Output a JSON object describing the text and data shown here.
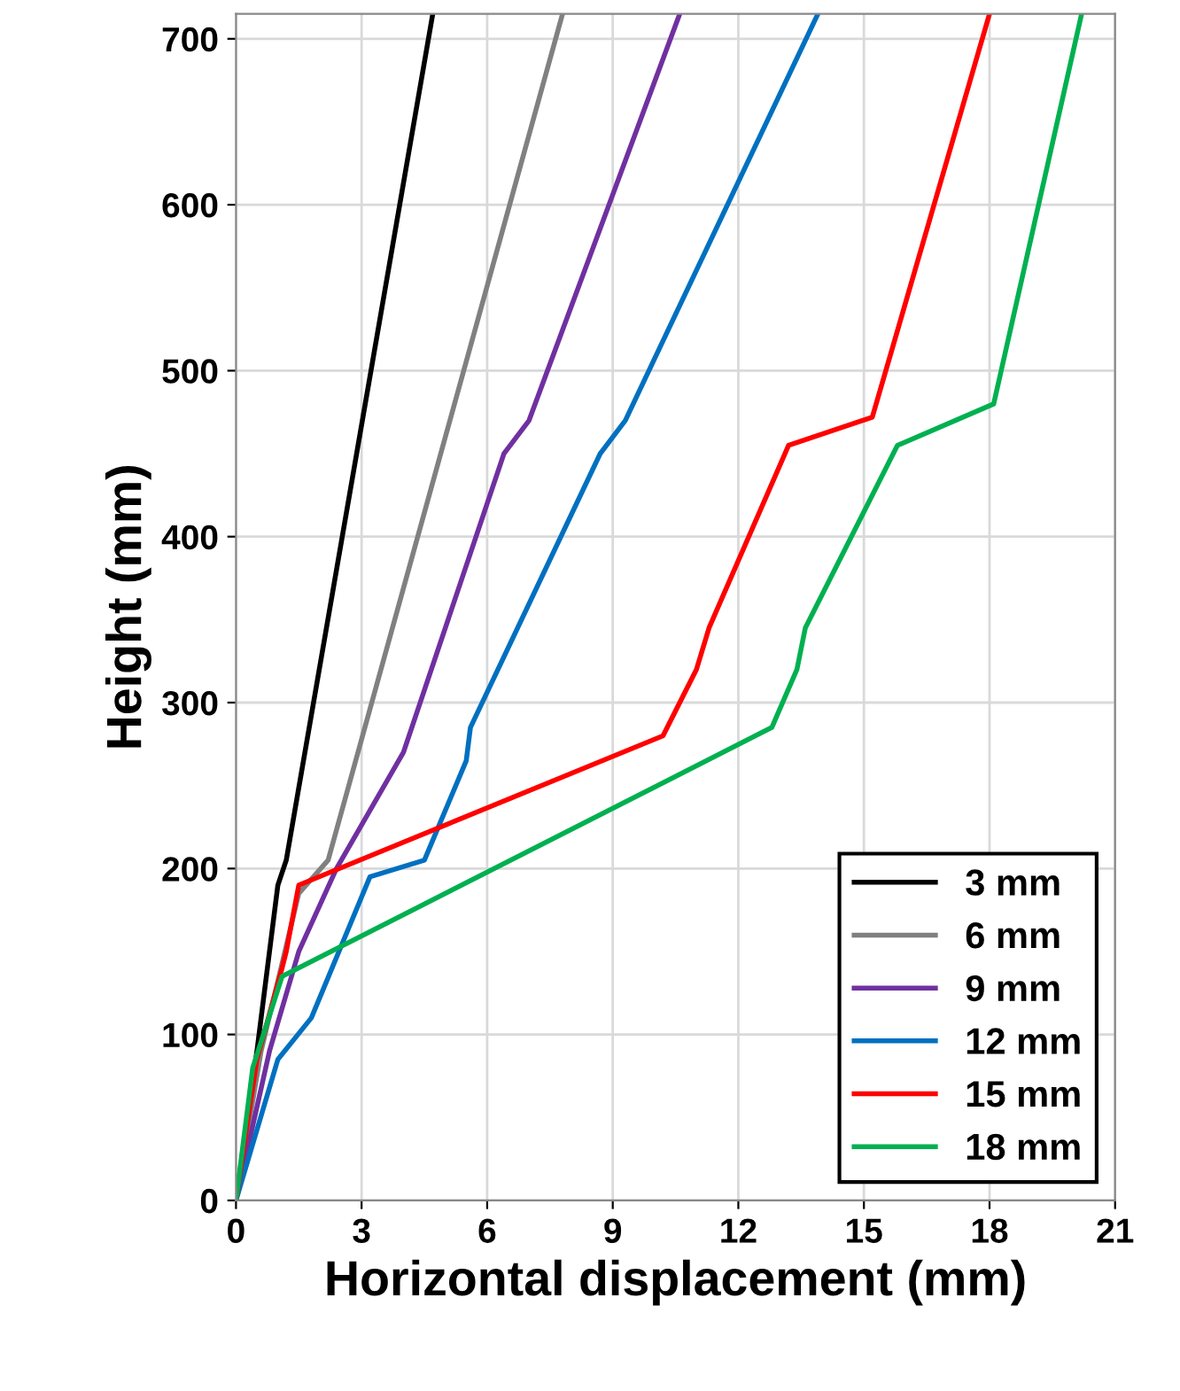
{
  "chart_data": {
    "type": "line",
    "xlabel": "Horizontal displacement (mm)",
    "ylabel": "Height (mm)",
    "xlim": [
      0,
      21
    ],
    "xticks": [
      0,
      3,
      6,
      9,
      12,
      15,
      18,
      21
    ],
    "ylim": [
      0,
      715
    ],
    "yticks": [
      0,
      100,
      200,
      300,
      400,
      500,
      600,
      700
    ],
    "grid": true,
    "legend": "bottom right",
    "line_style": "solid",
    "marker": "none",
    "series": [
      {
        "name": "3 mm",
        "color": "#000000",
        "x": [
          0,
          0.5,
          1.0,
          1.2,
          4.7
        ],
        "values": [
          0,
          90,
          190,
          205,
          715
        ]
      },
      {
        "name": "6 mm",
        "color": "#808080",
        "x": [
          0,
          0.6,
          1.5,
          2.2,
          7.8
        ],
        "values": [
          0,
          90,
          185,
          205,
          715
        ]
      },
      {
        "name": "9 mm",
        "color": "#7030a0",
        "x": [
          0,
          0.8,
          1.5,
          2.4,
          4.0,
          4.2,
          6.4,
          7.0,
          10.6
        ],
        "values": [
          0,
          90,
          150,
          200,
          270,
          285,
          450,
          470,
          715
        ]
      },
      {
        "name": "12 mm",
        "color": "#0070c0",
        "x": [
          0,
          1.0,
          1.8,
          3.2,
          4.5,
          5.5,
          5.6,
          8.7,
          9.3,
          13.9
        ],
        "values": [
          0,
          85,
          110,
          195,
          205,
          265,
          285,
          450,
          470,
          715
        ]
      },
      {
        "name": "15 mm",
        "color": "#ff0000",
        "x": [
          0,
          0.5,
          1.1,
          1.2,
          1.5,
          10.2,
          11.0,
          11.3,
          13.2,
          15.2,
          18.0
        ],
        "values": [
          0,
          85,
          140,
          150,
          190,
          280,
          320,
          345,
          455,
          472,
          715
        ]
      },
      {
        "name": "18 mm",
        "color": "#00b050",
        "x": [
          0,
          0.4,
          1.1,
          12.8,
          13.4,
          13.6,
          15.8,
          18.1,
          20.2
        ],
        "values": [
          0,
          80,
          135,
          285,
          320,
          345,
          455,
          480,
          715
        ]
      }
    ]
  }
}
